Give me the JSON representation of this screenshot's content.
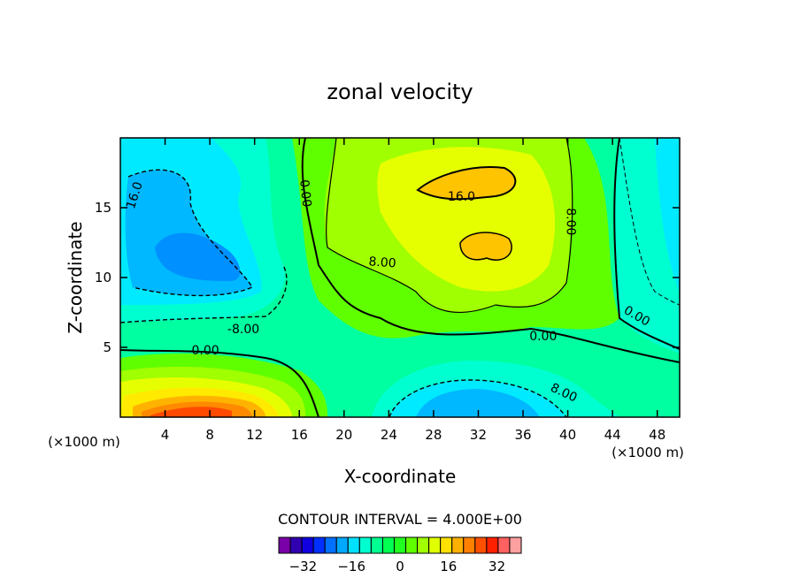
{
  "chart_data": {
    "type": "contour",
    "title": "zonal velocity",
    "xlabel": "X-coordinate",
    "ylabel": "Z-coordinate",
    "x_unit_note": "(×1000 m)",
    "x_unit_note_right": "(×1000 m)",
    "xlim": [
      0,
      50
    ],
    "ylim": [
      0,
      20
    ],
    "x_ticks": [
      4,
      8,
      12,
      16,
      20,
      24,
      28,
      32,
      36,
      40,
      44,
      48
    ],
    "y_ticks": [
      5,
      10,
      15
    ],
    "contour_interval_text": "CONTOUR INTERVAL = 4.000E+00",
    "contour_labels": [
      {
        "text": "16.0",
        "x": 1.6,
        "z": 15.8,
        "angle": -72
      },
      {
        "text": "0.00",
        "x": 16.2,
        "z": 16.0,
        "angle": 84
      },
      {
        "text": "16.0",
        "x": 30.5,
        "z": 15.5,
        "angle": 0
      },
      {
        "text": "8.00",
        "x": 39.9,
        "z": 14.0,
        "angle": 90
      },
      {
        "text": "8.00",
        "x": 23.4,
        "z": 10.8,
        "angle": 4
      },
      {
        "text": "-8.00",
        "x": 11.0,
        "z": 6.0,
        "angle": 0
      },
      {
        "text": "0.00",
        "x": 7.6,
        "z": 4.5,
        "angle": 0
      },
      {
        "text": "0.00",
        "x": 46.0,
        "z": 7.0,
        "angle": 30
      },
      {
        "text": "0.00",
        "x": 37.8,
        "z": 5.5,
        "angle": 0
      },
      {
        "text": "8.00",
        "x": 39.5,
        "z": 1.5,
        "angle": 25
      }
    ],
    "colorbar": {
      "levels": [
        -40,
        40
      ],
      "colors": [
        "#7a00a8",
        "#3000b0",
        "#1000e0",
        "#0030ff",
        "#0070ff",
        "#00a8ff",
        "#00e0ff",
        "#00ffd0",
        "#00ff90",
        "#00ff50",
        "#20ff20",
        "#60ff00",
        "#a0ff00",
        "#e0ff00",
        "#ffe000",
        "#ffb000",
        "#ff8000",
        "#ff5000",
        "#ff2000",
        "#ff6060",
        "#ffa0a0"
      ],
      "tick_labels": [
        "-32",
        "-16",
        "0",
        "16",
        "32"
      ],
      "tick_values": [
        -32,
        -16,
        0,
        16,
        32
      ]
    },
    "palette": {
      "c_m16": "#00b8ff",
      "c_m12": "#00eaff",
      "c_m8": "#00ffdc",
      "c_m4": "#00ffa0",
      "c_0": "#18ff40",
      "c_4": "#60ff00",
      "c_8": "#a0ff00",
      "c_12": "#e6ff00",
      "c_16": "#ffea00",
      "c_20": "#ffb300",
      "c_24": "#ff9a00",
      "c_28": "#ff6a00",
      "c_32": "#ff3c00",
      "c_m20": "#0090ff",
      "c_m24": "#0060ff"
    }
  }
}
